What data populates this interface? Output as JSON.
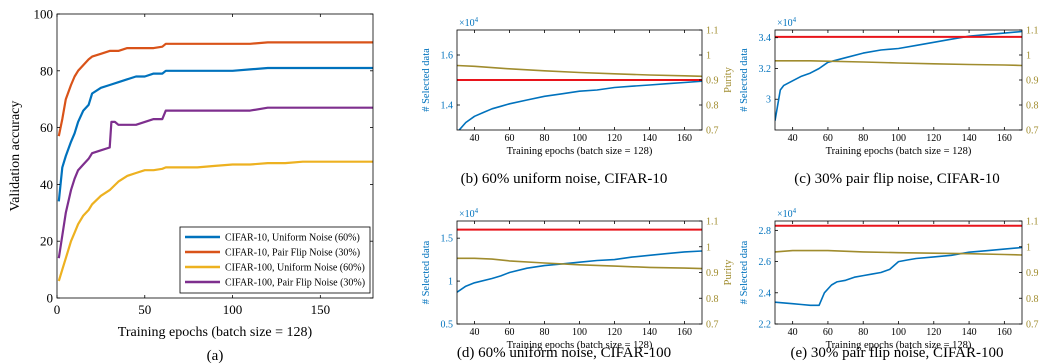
{
  "colors": {
    "blue": "#0072BD",
    "orange": "#D95319",
    "yellow": "#EDB120",
    "purple": "#7E2F8E",
    "red": "#E8141B",
    "olive": "#A08C2E"
  },
  "chart_data": [
    {
      "id": "a",
      "type": "line",
      "caption": "(a)",
      "xlabel": "Training epochs (batch size = 128)",
      "ylabel": "Validation accuracy",
      "xlim": [
        0,
        180
      ],
      "ylim": [
        0,
        100
      ],
      "xticks": [
        0,
        50,
        100,
        150
      ],
      "yticks": [
        0,
        20,
        40,
        60,
        80,
        100
      ],
      "legend_position": "bottom-right",
      "series": [
        {
          "name": "CIFAR-10,   Uniform Noise (60%)",
          "color": "#0072BD",
          "x": [
            1,
            3,
            5,
            8,
            10,
            12,
            15,
            18,
            20,
            25,
            30,
            35,
            40,
            45,
            50,
            55,
            60,
            62,
            70,
            80,
            90,
            100,
            110,
            120,
            130,
            140,
            150,
            160,
            170,
            180
          ],
          "y": [
            34,
            46,
            50,
            55,
            58,
            62,
            66,
            68,
            72,
            74,
            75,
            76,
            77,
            78,
            78,
            79,
            79,
            80,
            80,
            80,
            80,
            80,
            80.5,
            81,
            81,
            81,
            81,
            81,
            81,
            81
          ]
        },
        {
          "name": "CIFAR-10,   Pair Flip Noise (30%)",
          "color": "#D95319",
          "x": [
            1,
            3,
            5,
            8,
            10,
            12,
            15,
            18,
            20,
            25,
            30,
            35,
            40,
            45,
            50,
            55,
            60,
            62,
            70,
            80,
            90,
            100,
            110,
            120,
            130,
            140,
            150,
            160,
            170,
            180
          ],
          "y": [
            57,
            63,
            70,
            75,
            78,
            80,
            82,
            84,
            85,
            86,
            87,
            87,
            88,
            88,
            88,
            88,
            88.5,
            89.5,
            89.5,
            89.5,
            89.5,
            89.5,
            89.5,
            90,
            90,
            90,
            90,
            90,
            90,
            90
          ]
        },
        {
          "name": "CIFAR-100, Uniform Noise (60%)",
          "color": "#EDB120",
          "x": [
            1,
            3,
            5,
            8,
            10,
            12,
            15,
            18,
            20,
            25,
            30,
            35,
            40,
            45,
            50,
            55,
            60,
            62,
            70,
            80,
            90,
            100,
            110,
            120,
            130,
            140,
            150,
            160,
            170,
            180
          ],
          "y": [
            6,
            10,
            14,
            20,
            23,
            26,
            29,
            31,
            33,
            36,
            38,
            41,
            43,
            44,
            45,
            45,
            45.5,
            46,
            46,
            46,
            46.5,
            47,
            47,
            47.5,
            47.5,
            48,
            48,
            48,
            48,
            48
          ]
        },
        {
          "name": "CIFAR-100, Pair Flip Noise (30%)",
          "color": "#7E2F8E",
          "x": [
            1,
            3,
            5,
            8,
            10,
            12,
            15,
            18,
            20,
            25,
            30,
            31,
            33,
            35,
            40,
            45,
            50,
            55,
            60,
            62,
            70,
            80,
            90,
            100,
            110,
            120,
            130,
            140,
            150,
            160,
            170,
            180
          ],
          "y": [
            14,
            22,
            30,
            38,
            42,
            45,
            47,
            49,
            51,
            52,
            53,
            62,
            62,
            61,
            61,
            61,
            62,
            63,
            63,
            66,
            66,
            66,
            66,
            66,
            66,
            67,
            67,
            67,
            67,
            67,
            67,
            67
          ]
        }
      ]
    },
    {
      "id": "b",
      "type": "line",
      "caption": "(b) 60% uniform noise, CIFAR-10",
      "xlabel": "Training epochs (batch size = 128)",
      "ylabel": "# Selected data",
      "y2label": "Purity",
      "exponent_label": "×10",
      "exponent_power": "4",
      "xlim": [
        30,
        170
      ],
      "xticks": [
        40,
        60,
        80,
        100,
        120,
        140,
        160
      ],
      "ylim": [
        1.3,
        1.7
      ],
      "yticks": [
        "1.4",
        "1.6"
      ],
      "y2lim": [
        0.7,
        1.1
      ],
      "y2ticks": [
        "0.7",
        "0.8",
        "0.9",
        "1",
        "1.1"
      ],
      "series": [
        {
          "name": "",
          "axis": "left",
          "color": "#0072BD",
          "x": [
            30,
            35,
            40,
            45,
            50,
            55,
            60,
            70,
            80,
            90,
            100,
            110,
            120,
            130,
            140,
            150,
            160,
            170
          ],
          "y": [
            1.29,
            1.33,
            1.355,
            1.37,
            1.385,
            1.395,
            1.405,
            1.42,
            1.435,
            1.445,
            1.455,
            1.46,
            1.47,
            1.475,
            1.48,
            1.485,
            1.49,
            1.495
          ]
        },
        {
          "name": "",
          "axis": "left",
          "color": "#E8141B",
          "x": [
            30,
            170
          ],
          "y": [
            1.5,
            1.5
          ]
        },
        {
          "name": "",
          "axis": "right",
          "color": "#A08C2E",
          "x": [
            30,
            40,
            60,
            80,
            100,
            120,
            140,
            160,
            170
          ],
          "y": [
            0.958,
            0.955,
            0.945,
            0.937,
            0.93,
            0.925,
            0.92,
            0.917,
            0.915
          ]
        }
      ]
    },
    {
      "id": "c",
      "type": "line",
      "caption": "(c) 30% pair flip noise, CIFAR-10",
      "xlabel": "Training epochs (batch size = 128)",
      "ylabel": "# Selected data",
      "y2label": "Purity",
      "exponent_label": "×10",
      "exponent_power": "4",
      "xlim": [
        30,
        170
      ],
      "xticks": [
        40,
        60,
        80,
        100,
        120,
        140,
        160
      ],
      "ylim": [
        2.8,
        3.45
      ],
      "yticks": [
        "3",
        "3.2",
        "3.4"
      ],
      "y2lim": [
        0.7,
        1.1
      ],
      "y2ticks": [
        "0.7",
        "0.8",
        "0.9",
        "1",
        "1.1"
      ],
      "series": [
        {
          "name": "",
          "axis": "left",
          "color": "#0072BD",
          "x": [
            30,
            33,
            35,
            40,
            45,
            50,
            55,
            60,
            70,
            80,
            90,
            100,
            110,
            120,
            130,
            140,
            150,
            160,
            170
          ],
          "y": [
            2.86,
            3.06,
            3.09,
            3.12,
            3.15,
            3.17,
            3.2,
            3.24,
            3.27,
            3.3,
            3.32,
            3.33,
            3.35,
            3.37,
            3.39,
            3.41,
            3.42,
            3.43,
            3.44
          ]
        },
        {
          "name": "",
          "axis": "left",
          "color": "#E8141B",
          "x": [
            30,
            170
          ],
          "y": [
            3.405,
            3.405
          ]
        },
        {
          "name": "",
          "axis": "right",
          "color": "#A08C2E",
          "x": [
            30,
            50,
            80,
            100,
            120,
            140,
            160,
            170
          ],
          "y": [
            0.977,
            0.977,
            0.972,
            0.968,
            0.965,
            0.962,
            0.96,
            0.958
          ]
        }
      ]
    },
    {
      "id": "d",
      "type": "line",
      "caption": "(d) 60% uniform noise, CIFAR-100",
      "xlabel": "Training epochs (batch size = 128)",
      "ylabel": "# Selected data",
      "y2label": "Purity",
      "exponent_label": "×10",
      "exponent_power": "4",
      "xlim": [
        30,
        170
      ],
      "xticks": [
        40,
        60,
        80,
        100,
        120,
        140,
        160
      ],
      "ylim": [
        0.5,
        1.7
      ],
      "yticks": [
        "0.5",
        "1",
        "1.5"
      ],
      "y2lim": [
        0.7,
        1.1
      ],
      "y2ticks": [
        "0.7",
        "0.8",
        "0.9",
        "1",
        "1.1"
      ],
      "series": [
        {
          "name": "",
          "axis": "left",
          "color": "#0072BD",
          "x": [
            30,
            35,
            40,
            50,
            55,
            60,
            70,
            80,
            90,
            100,
            110,
            120,
            130,
            140,
            150,
            160,
            170
          ],
          "y": [
            0.87,
            0.94,
            0.98,
            1.03,
            1.06,
            1.1,
            1.15,
            1.18,
            1.2,
            1.22,
            1.24,
            1.25,
            1.28,
            1.3,
            1.32,
            1.34,
            1.35
          ]
        },
        {
          "name": "",
          "axis": "left",
          "color": "#E8141B",
          "x": [
            30,
            170
          ],
          "y": [
            1.6,
            1.6
          ]
        },
        {
          "name": "",
          "axis": "right",
          "color": "#A08C2E",
          "x": [
            30,
            40,
            50,
            60,
            80,
            100,
            120,
            140,
            160,
            170
          ],
          "y": [
            0.955,
            0.955,
            0.952,
            0.945,
            0.937,
            0.93,
            0.925,
            0.92,
            0.917,
            0.915
          ]
        }
      ]
    },
    {
      "id": "e",
      "type": "line",
      "caption": "(e) 30% pair flip noise, CIFAR-100",
      "xlabel": "Training epochs (batch size = 128)",
      "ylabel": "# Selected data",
      "y2label": "Purity",
      "exponent_label": "×10",
      "exponent_power": "4",
      "xlim": [
        30,
        170
      ],
      "xticks": [
        40,
        60,
        80,
        100,
        120,
        140,
        160
      ],
      "ylim": [
        2.2,
        2.86
      ],
      "yticks": [
        "2.2",
        "2.4",
        "2.6",
        "2.8"
      ],
      "y2lim": [
        0.7,
        1.1
      ],
      "y2ticks": [
        "0.7",
        "0.8",
        "0.9",
        "1",
        "1.1"
      ],
      "series": [
        {
          "name": "",
          "axis": "left",
          "color": "#0072BD",
          "x": [
            30,
            35,
            40,
            45,
            50,
            55,
            58,
            62,
            65,
            70,
            75,
            80,
            85,
            90,
            95,
            100,
            105,
            110,
            120,
            130,
            140,
            150,
            160,
            170
          ],
          "y": [
            2.34,
            2.335,
            2.33,
            2.325,
            2.32,
            2.32,
            2.4,
            2.45,
            2.47,
            2.48,
            2.5,
            2.51,
            2.52,
            2.53,
            2.55,
            2.6,
            2.61,
            2.62,
            2.63,
            2.64,
            2.66,
            2.67,
            2.68,
            2.69
          ]
        },
        {
          "name": "",
          "axis": "left",
          "color": "#E8141B",
          "x": [
            30,
            170
          ],
          "y": [
            2.83,
            2.83
          ]
        },
        {
          "name": "",
          "axis": "right",
          "color": "#A08C2E",
          "x": [
            30,
            40,
            60,
            80,
            100,
            120,
            140,
            160,
            170
          ],
          "y": [
            0.98,
            0.985,
            0.985,
            0.98,
            0.977,
            0.975,
            0.973,
            0.97,
            0.968
          ]
        }
      ]
    }
  ]
}
